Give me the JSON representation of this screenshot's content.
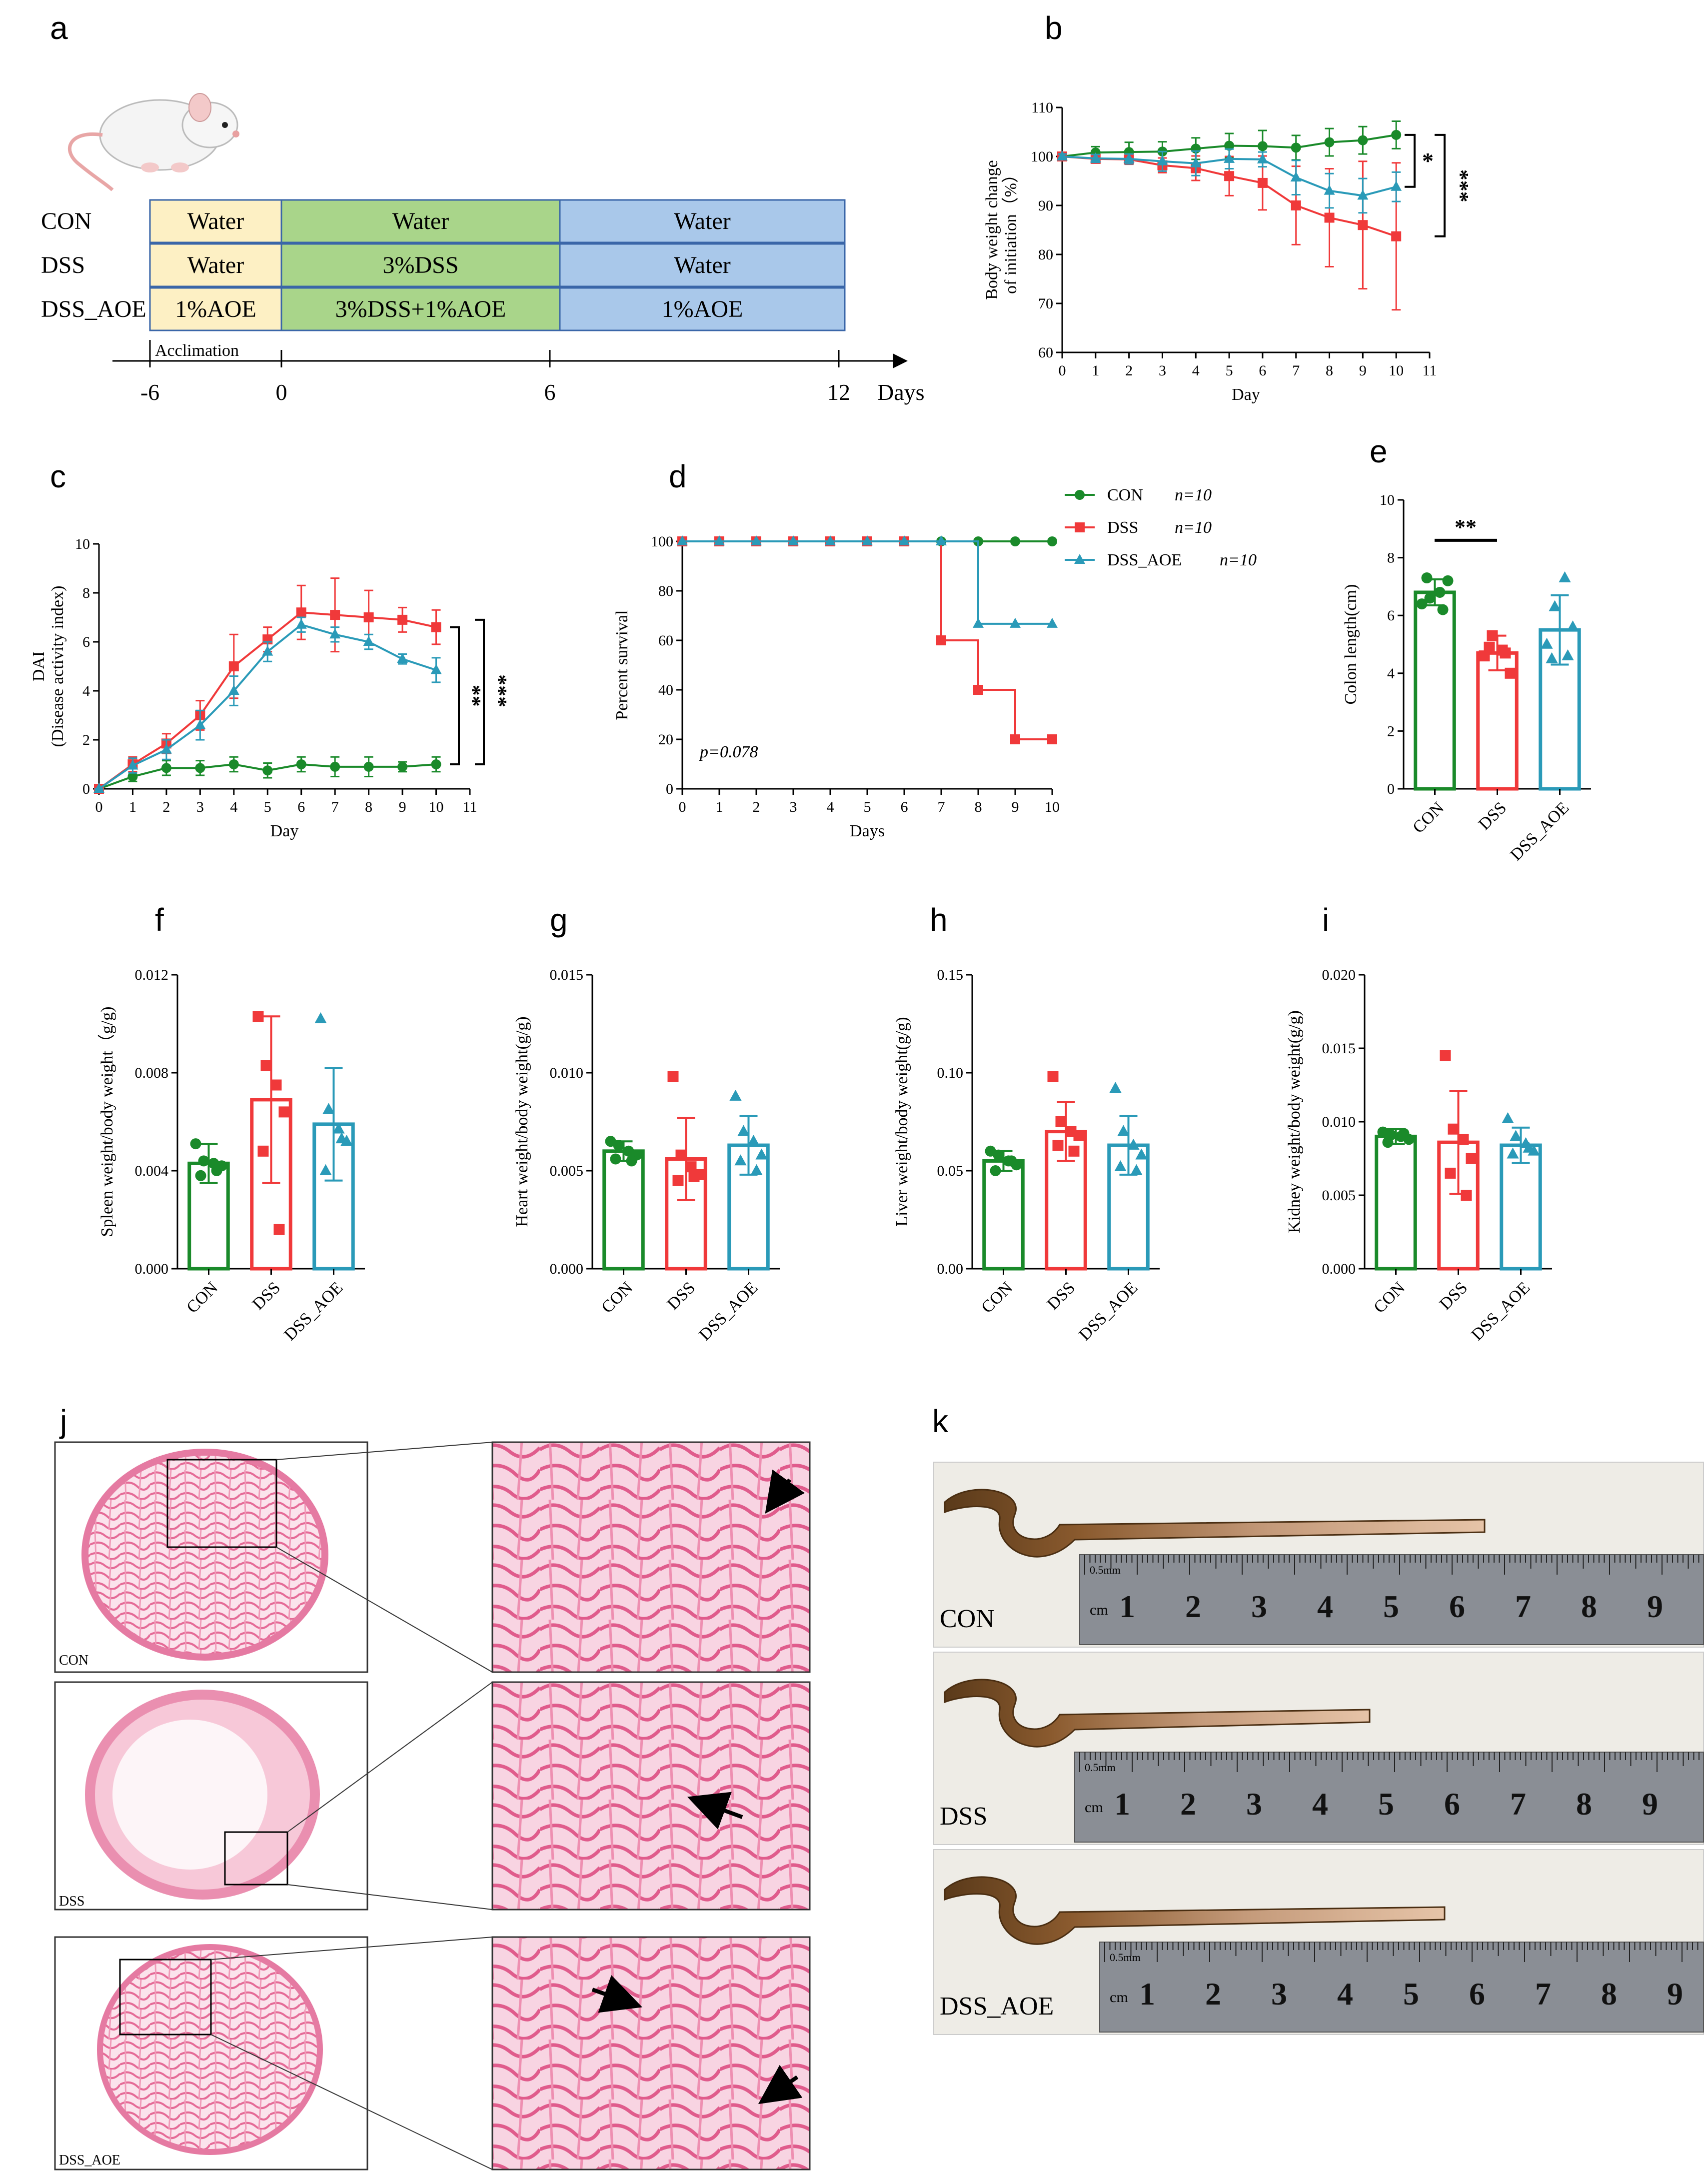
{
  "colors": {
    "con": "#1a8a2a",
    "dss": "#f0393a",
    "aoe": "#2a9ab8",
    "water1": "#fdf0c4",
    "green": "#a9d58a",
    "blue": "#a9c8ea",
    "tissue": "#f3a6c4"
  },
  "panel_labels": {
    "a": "a",
    "b": "b",
    "c": "c",
    "d": "d",
    "e": "e",
    "f": "f",
    "g": "g",
    "h": "h",
    "i": "i",
    "j": "j",
    "k": "k"
  },
  "groups": [
    "CON",
    "DSS",
    "DSS_AOE"
  ],
  "design": {
    "rows": [
      {
        "label": "CON",
        "p1": "Water",
        "p2": "Water",
        "p3": "Water"
      },
      {
        "label": "DSS",
        "p1": "Water",
        "p2": "3%DSS",
        "p3": "Water"
      },
      {
        "label": "DSS_AOE",
        "p1": "1%AOE",
        "p2": "3%DSS+1%AOE",
        "p3": "1%AOE"
      }
    ],
    "acclimation": "Acclimation",
    "timeline": [
      "-6",
      "0",
      "6",
      "12"
    ],
    "days_label": "Days",
    "mouse_icon": "mouse-icon"
  },
  "chart_data": [
    {
      "id": "b",
      "type": "line",
      "title": "",
      "xlabel": "Day",
      "ylabel": "Body weight change of initiation(%)",
      "ylabel_lines": [
        "Body weight change",
        "of initiation（%）"
      ],
      "x": [
        0,
        1,
        2,
        3,
        4,
        5,
        6,
        7,
        8,
        9,
        10
      ],
      "xlim": [
        0,
        11
      ],
      "xticks": [
        "0",
        "1",
        "2",
        "3",
        "4",
        "5",
        "6",
        "7",
        "8",
        "9",
        "10",
        "11"
      ],
      "ylim": [
        60,
        110
      ],
      "yticks": [
        "60",
        "70",
        "80",
        "90",
        "100",
        "110"
      ],
      "series": [
        {
          "name": "CON",
          "values": [
            100,
            100.8,
            100.9,
            101,
            101.6,
            102.2,
            102.1,
            101.8,
            102.9,
            103.3,
            104.4
          ],
          "err": [
            0.5,
            1.2,
            2,
            2,
            2.2,
            2.5,
            3.2,
            2.5,
            2.8,
            2.8,
            2.8
          ]
        },
        {
          "name": "DSS",
          "values": [
            100,
            99.5,
            99.4,
            98.2,
            97.6,
            96,
            94.6,
            90,
            87.5,
            86,
            83.7
          ],
          "err": [
            0.5,
            0.8,
            1,
            1.5,
            2.5,
            4,
            5.5,
            8,
            10,
            13,
            15
          ]
        },
        {
          "name": "DSS_AOE",
          "values": [
            100,
            99.6,
            99.5,
            99,
            98.6,
            99.5,
            99.4,
            95.7,
            93,
            92,
            93.8
          ],
          "err": [
            0.5,
            0.8,
            1,
            2,
            2.5,
            2,
            1.5,
            3.5,
            3.5,
            3.5,
            3
          ]
        }
      ],
      "sig": [
        "*",
        "***"
      ]
    },
    {
      "id": "c",
      "type": "line",
      "title": "",
      "xlabel": "Day",
      "ylabel": "DAI (Disease activity index)",
      "ylabel_lines": [
        "DAI",
        "(Disease activity index)"
      ],
      "x": [
        0,
        1,
        2,
        3,
        4,
        5,
        6,
        7,
        8,
        9,
        10
      ],
      "xlim": [
        0,
        11
      ],
      "xticks": [
        "0",
        "1",
        "2",
        "3",
        "4",
        "5",
        "6",
        "7",
        "8",
        "9",
        "10",
        "11"
      ],
      "ylim": [
        0,
        10
      ],
      "yticks": [
        "0",
        "2",
        "4",
        "6",
        "8",
        "10"
      ],
      "series": [
        {
          "name": "CON",
          "values": [
            0,
            0.5,
            0.85,
            0.85,
            1,
            0.75,
            1,
            0.9,
            0.9,
            0.9,
            1
          ],
          "err": [
            0,
            0.2,
            0.3,
            0.3,
            0.3,
            0.3,
            0.3,
            0.4,
            0.4,
            0.2,
            0.3
          ]
        },
        {
          "name": "DSS",
          "values": [
            0,
            1,
            1.85,
            3,
            5,
            6.1,
            7.2,
            7.1,
            7,
            6.9,
            6.6
          ],
          "err": [
            0,
            0.3,
            0.4,
            0.6,
            1.3,
            0.5,
            1.1,
            1.5,
            1.1,
            0.5,
            0.7
          ]
        },
        {
          "name": "DSS_AOE",
          "values": [
            0,
            0.95,
            1.6,
            2.6,
            4,
            5.6,
            6.7,
            6.3,
            6,
            5.3,
            4.85
          ],
          "err": [
            0,
            0.3,
            0.4,
            0.6,
            0.6,
            0.4,
            0.3,
            0.3,
            0.3,
            0.2,
            0.5
          ]
        }
      ],
      "sig": [
        "**",
        "***"
      ]
    },
    {
      "id": "d",
      "type": "line",
      "step": true,
      "title": "",
      "xlabel": "Days",
      "ylabel": "Percent survival",
      "x": [
        0,
        1,
        2,
        3,
        4,
        5,
        6,
        7,
        8,
        9,
        10
      ],
      "xlim": [
        0,
        10
      ],
      "xticks": [
        "0",
        "1",
        "2",
        "3",
        "4",
        "5",
        "6",
        "7",
        "8",
        "9",
        "10"
      ],
      "ylim": [
        0,
        100
      ],
      "yticks": [
        "0",
        "20",
        "40",
        "60",
        "80",
        "100"
      ],
      "series": [
        {
          "name": "CON",
          "n": "n=10",
          "values": [
            100,
            100,
            100,
            100,
            100,
            100,
            100,
            100,
            100,
            100,
            100
          ]
        },
        {
          "name": "DSS",
          "n": "n=10",
          "values": [
            100,
            100,
            100,
            100,
            100,
            100,
            100,
            60,
            40,
            20,
            20
          ]
        },
        {
          "name": "DSS_AOE",
          "n": "n=10",
          "values": [
            100,
            100,
            100,
            100,
            100,
            100,
            100,
            100,
            66.7,
            66.7,
            66.7
          ]
        }
      ],
      "annotation": "p=0.078"
    },
    {
      "id": "e",
      "type": "bar",
      "title": "",
      "xlabel": "",
      "ylabel": "Colon length(cm)",
      "categories": [
        "CON",
        "DSS",
        "DSS_AOE"
      ],
      "values": [
        6.8,
        4.7,
        5.5
      ],
      "err": [
        0.45,
        0.6,
        1.2
      ],
      "ylim": [
        0,
        10
      ],
      "yticks": [
        "0",
        "2",
        "4",
        "6",
        "8",
        "10"
      ],
      "points": [
        [
          6.4,
          6.6,
          6.8,
          7.2,
          7.3,
          6.2
        ],
        [
          4.6,
          5.3,
          4.8,
          4.0,
          4.9,
          4.7
        ],
        [
          5.0,
          6.3,
          7.3,
          5.6,
          4.5,
          4.6
        ]
      ],
      "sig": "**"
    },
    {
      "id": "f",
      "type": "bar",
      "title": "",
      "xlabel": "",
      "ylabel": "Spleen weight/body weight（g/g)",
      "categories": [
        "CON",
        "DSS",
        "DSS_AOE"
      ],
      "values": [
        0.0043,
        0.0069,
        0.0059
      ],
      "err": [
        0.0008,
        0.0034,
        0.0023
      ],
      "ylim": [
        0,
        0.012
      ],
      "yticks": [
        "0.000",
        "0.004",
        "0.008",
        "0.012"
      ],
      "points": [
        [
          0.0051,
          0.0044,
          0.0043,
          0.0042,
          0.0038,
          0.004
        ],
        [
          0.0103,
          0.0083,
          0.0075,
          0.0064,
          0.0048,
          0.0016
        ],
        [
          0.0102,
          0.0065,
          0.0057,
          0.0052,
          0.004,
          0.0053
        ]
      ]
    },
    {
      "id": "g",
      "type": "bar",
      "title": "",
      "xlabel": "",
      "ylabel": "Heart weight/body weight(g/g)",
      "categories": [
        "CON",
        "DSS",
        "DSS_AOE"
      ],
      "values": [
        0.006,
        0.0056,
        0.0063
      ],
      "err": [
        0.0005,
        0.0021,
        0.0015
      ],
      "ylim": [
        0,
        0.015
      ],
      "yticks": [
        "0.000",
        "0.005",
        "0.010",
        "0.015"
      ],
      "points": [
        [
          0.0065,
          0.0063,
          0.006,
          0.0058,
          0.0056,
          0.0055
        ],
        [
          0.0098,
          0.0058,
          0.0052,
          0.0048,
          0.0045,
          0.0047
        ],
        [
          0.0088,
          0.007,
          0.0065,
          0.0058,
          0.0055,
          0.005
        ]
      ]
    },
    {
      "id": "h",
      "type": "bar",
      "title": "",
      "xlabel": "",
      "ylabel": "Liver weight/body weight(g/g)",
      "categories": [
        "CON",
        "DSS",
        "DSS_AOE"
      ],
      "values": [
        0.055,
        0.07,
        0.063
      ],
      "err": [
        0.005,
        0.015,
        0.015
      ],
      "ylim": [
        0,
        0.15
      ],
      "yticks": [
        "0.00",
        "0.05",
        "0.10",
        "0.15"
      ],
      "points": [
        [
          0.06,
          0.058,
          0.055,
          0.053,
          0.05,
          0.055
        ],
        [
          0.098,
          0.075,
          0.07,
          0.068,
          0.063,
          0.06
        ],
        [
          0.092,
          0.07,
          0.063,
          0.058,
          0.052,
          0.05
        ]
      ]
    },
    {
      "id": "i",
      "type": "bar",
      "title": "",
      "xlabel": "",
      "ylabel": "Kidney weight/body weight(g/g)",
      "categories": [
        "CON",
        "DSS",
        "DSS_AOE"
      ],
      "values": [
        0.009,
        0.0086,
        0.0084
      ],
      "err": [
        0.0005,
        0.0035,
        0.0012
      ],
      "ylim": [
        0,
        0.02
      ],
      "yticks": [
        "0.000",
        "0.005",
        "0.010",
        "0.015",
        "0.020"
      ],
      "points": [
        [
          0.0093,
          0.0091,
          0.009,
          0.0088,
          0.0086,
          0.0092
        ],
        [
          0.0145,
          0.0095,
          0.0088,
          0.0075,
          0.0065,
          0.005
        ],
        [
          0.0102,
          0.009,
          0.0085,
          0.008,
          0.0078,
          0.0082
        ]
      ]
    }
  ],
  "histology": {
    "labels": [
      "CON",
      "DSS",
      "DSS_AOE"
    ]
  },
  "colon_photos": {
    "labels": [
      "CON",
      "DSS",
      "DSS_AOE"
    ],
    "ruler_unit": "cm",
    "ruler_mm": "0.5mm",
    "ruler_numbers": [
      "1",
      "2",
      "3",
      "4",
      "5",
      "6",
      "7",
      "8",
      "9"
    ]
  }
}
